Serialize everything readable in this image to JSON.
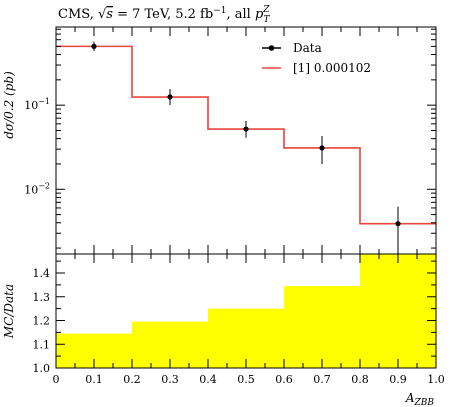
{
  "chart_data": [
    {
      "type": "line",
      "title_prefix": "CMS, ",
      "title_sqrt": "√",
      "title_s": "s",
      "title_middle": " = 7 TeV, 5.2 fb",
      "title_exp": "−1",
      "title_suffix": ", all ",
      "title_p": "p",
      "title_p_sub": "T",
      "title_p_sup": "Z",
      "ylabel": "dσ/0.2 (pb)",
      "yscale": "log",
      "ylim": [
        0.0017,
        0.85
      ],
      "yticks": [
        {
          "base": "10",
          "exp": "−1",
          "value": 0.1
        },
        {
          "base": "10",
          "exp": "−2",
          "value": 0.01
        }
      ],
      "legend_position": "top-right",
      "series": [
        {
          "name": "Data",
          "style": "points-with-errorbars",
          "color": "#000000",
          "x": [
            0.1,
            0.3,
            0.5,
            0.7,
            0.9
          ],
          "y": [
            0.5,
            0.125,
            0.052,
            0.031,
            0.0039
          ],
          "err_up": [
            0.07,
            0.03,
            0.013,
            0.012,
            0.0023
          ],
          "err_down": [
            0.06,
            0.025,
            0.011,
            0.011,
            0.0018
          ]
        },
        {
          "name": "[1] 0.000102",
          "style": "step",
          "color": "#e8453c",
          "bin_edges": [
            0.0,
            0.2,
            0.4,
            0.6,
            0.8,
            1.0
          ],
          "values": [
            0.5,
            0.125,
            0.052,
            0.031,
            0.0039
          ]
        }
      ]
    },
    {
      "type": "bar",
      "ylabel": "MC/Data",
      "xlabel_main": "A",
      "xlabel_sub": "ZBB",
      "ylim": [
        1.0,
        1.48
      ],
      "xlim": [
        0.0,
        1.0
      ],
      "yticks": [
        "1.0",
        "1.1",
        "1.2",
        "1.3",
        "1.4"
      ],
      "xticks": [
        "0",
        "0.1",
        "0.2",
        "0.3",
        "0.4",
        "0.5",
        "0.6",
        "0.7",
        "0.8",
        "0.9",
        "1.0"
      ],
      "fill_color": "#ffff00",
      "bin_edges": [
        0.0,
        0.2,
        0.4,
        0.6,
        0.8,
        1.0
      ],
      "values": [
        1.145,
        1.195,
        1.25,
        1.345,
        1.5
      ]
    }
  ]
}
